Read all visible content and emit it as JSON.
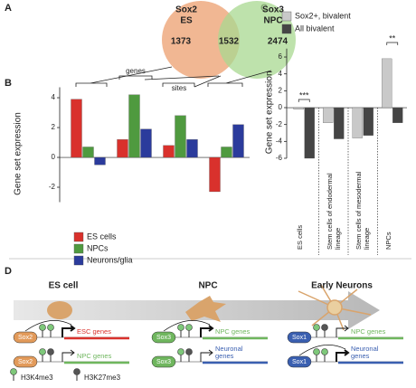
{
  "panels": [
    "A",
    "B",
    "C",
    "D"
  ],
  "venn": {
    "sets": [
      {
        "name": "Sox2",
        "sub": "ES",
        "only": 1373
      },
      {
        "name": "Sox3",
        "sub": "NPC",
        "only": 2474
      }
    ],
    "overlap": 1532
  },
  "chart_data": [
    {
      "type": "bar",
      "y_label": "Gene set expression",
      "categories": [
        null,
        null,
        null,
        null
      ],
      "series": [
        {
          "name": "ES cells",
          "color": "#d9312c",
          "values": [
            3.9,
            1.2,
            0.8,
            -2.3
          ]
        },
        {
          "name": "NPCs",
          "color": "#4f9a3f",
          "values": [
            0.7,
            4.2,
            2.8,
            0.7
          ]
        },
        {
          "name": "Neurons/glia",
          "color": "#2b3b9c",
          "values": [
            -0.5,
            1.9,
            1.2,
            2.2
          ]
        }
      ],
      "ylim": [
        -3,
        4.7
      ],
      "yticks": [
        -2,
        0,
        2,
        4
      ],
      "annotations": [
        "genes",
        "sites"
      ]
    },
    {
      "type": "bar",
      "y_label": "Gene set expression",
      "categories": [
        "ES cells",
        "Stem cells of endodermal lineage",
        "Stem cells of mesodermal lineage",
        "NPCs"
      ],
      "series": [
        {
          "name": "Sox2+, bivalent",
          "color": "#c9c9c9",
          "values": [
            -0.2,
            -1.8,
            -3.6,
            5.8
          ]
        },
        {
          "name": "All bivalent",
          "color": "#454545",
          "values": [
            -6.0,
            -3.7,
            -3.3,
            -1.8
          ]
        }
      ],
      "ylim": [
        -6,
        7
      ],
      "yticks": [
        -6,
        -4,
        -2,
        0,
        2,
        4,
        6
      ],
      "annotations": [
        "***",
        "**"
      ]
    }
  ],
  "diagram": {
    "stages": [
      "ES cell",
      "NPC",
      "Early Neurons"
    ],
    "rows": [
      [
        {
          "factor": "Sox2",
          "gene": [
            "ESC genes"
          ]
        },
        {
          "factor": "Sox2",
          "gene": [
            "NPC genes"
          ]
        }
      ],
      [
        {
          "factor": "Sox3",
          "gene": [
            "NPC genes"
          ]
        },
        {
          "factor": "Sox3",
          "gene": [
            "Neuronal",
            "genes"
          ]
        }
      ],
      [
        {
          "factor": "Sox1",
          "gene": [
            "NPC genes"
          ]
        },
        {
          "factor": "Sox1",
          "gene": [
            "Neuronal",
            "genes"
          ]
        }
      ]
    ],
    "legend": [
      "H3K4me3",
      "H3K27me3"
    ]
  }
}
